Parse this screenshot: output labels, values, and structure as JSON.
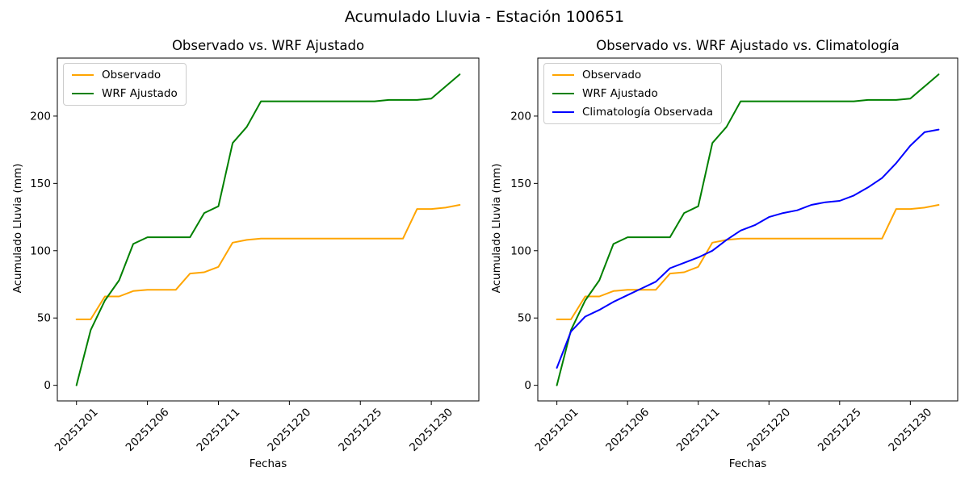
{
  "figure": {
    "suptitle": "Acumulado Lluvia - Estación 100651",
    "background_color": "#ffffff",
    "text_color": "#000000"
  },
  "chart_data": [
    {
      "type": "line",
      "title": "Observado vs. WRF Ajustado",
      "xlabel": "Fechas",
      "ylabel": "Acumulado Lluvia (mm)",
      "x": [
        0,
        1,
        2,
        3,
        4,
        5,
        6,
        7,
        8,
        9,
        10,
        11,
        12,
        13,
        14,
        15,
        16,
        17,
        18,
        19,
        20,
        21,
        22,
        23,
        24,
        25,
        26,
        27
      ],
      "xtick_positions": [
        0,
        5,
        10,
        15,
        20,
        25
      ],
      "xtick_labels": [
        "20251201",
        "20251206",
        "20251211",
        "20251220",
        "20251225",
        "20251230"
      ],
      "ytick_values": [
        0,
        50,
        100,
        150,
        200
      ],
      "xlim": [
        -1.35,
        28.35
      ],
      "ylim": [
        -11.6,
        243.1
      ],
      "grid": false,
      "legend_position": "upper-left",
      "series": [
        {
          "name": "Observado",
          "color": "#ffa500",
          "values": [
            49,
            49,
            66,
            66,
            70,
            71,
            71,
            71,
            83,
            84,
            88,
            106,
            108,
            109,
            109,
            109,
            109,
            109,
            109,
            109,
            109,
            109,
            109,
            109,
            131,
            131,
            132,
            134
          ]
        },
        {
          "name": "WRF Ajustado",
          "color": "#008000",
          "values": [
            0,
            41,
            63,
            78,
            105,
            110,
            110,
            110,
            110,
            128,
            133,
            180,
            192,
            211,
            211,
            211,
            211,
            211,
            211,
            211,
            211,
            211,
            212,
            212,
            212,
            213,
            222,
            231
          ]
        }
      ]
    },
    {
      "type": "line",
      "title": "Observado vs. WRF Ajustado vs. Climatología",
      "xlabel": "Fechas",
      "ylabel": "Acumulado Lluvia (mm)",
      "x": [
        0,
        1,
        2,
        3,
        4,
        5,
        6,
        7,
        8,
        9,
        10,
        11,
        12,
        13,
        14,
        15,
        16,
        17,
        18,
        19,
        20,
        21,
        22,
        23,
        24,
        25,
        26,
        27
      ],
      "xtick_positions": [
        0,
        5,
        10,
        15,
        20,
        25
      ],
      "xtick_labels": [
        "20251201",
        "20251206",
        "20251211",
        "20251220",
        "20251225",
        "20251230"
      ],
      "ytick_values": [
        0,
        50,
        100,
        150,
        200
      ],
      "xlim": [
        -1.35,
        28.35
      ],
      "ylim": [
        -11.6,
        243.1
      ],
      "grid": false,
      "legend_position": "upper-left",
      "series": [
        {
          "name": "Observado",
          "color": "#ffa500",
          "values": [
            49,
            49,
            66,
            66,
            70,
            71,
            71,
            71,
            83,
            84,
            88,
            106,
            108,
            109,
            109,
            109,
            109,
            109,
            109,
            109,
            109,
            109,
            109,
            109,
            131,
            131,
            132,
            134
          ]
        },
        {
          "name": "WRF Ajustado",
          "color": "#008000",
          "values": [
            0,
            41,
            63,
            78,
            105,
            110,
            110,
            110,
            110,
            128,
            133,
            180,
            192,
            211,
            211,
            211,
            211,
            211,
            211,
            211,
            211,
            211,
            212,
            212,
            212,
            213,
            222,
            231
          ]
        },
        {
          "name": "Climatología Observada",
          "color": "#0000ff",
          "values": [
            13,
            40,
            51,
            56,
            62,
            67,
            72,
            77,
            87,
            91,
            95,
            100,
            108,
            115,
            119,
            125,
            128,
            130,
            134,
            136,
            137,
            141,
            147,
            154,
            165,
            178,
            188,
            190
          ]
        }
      ]
    }
  ]
}
